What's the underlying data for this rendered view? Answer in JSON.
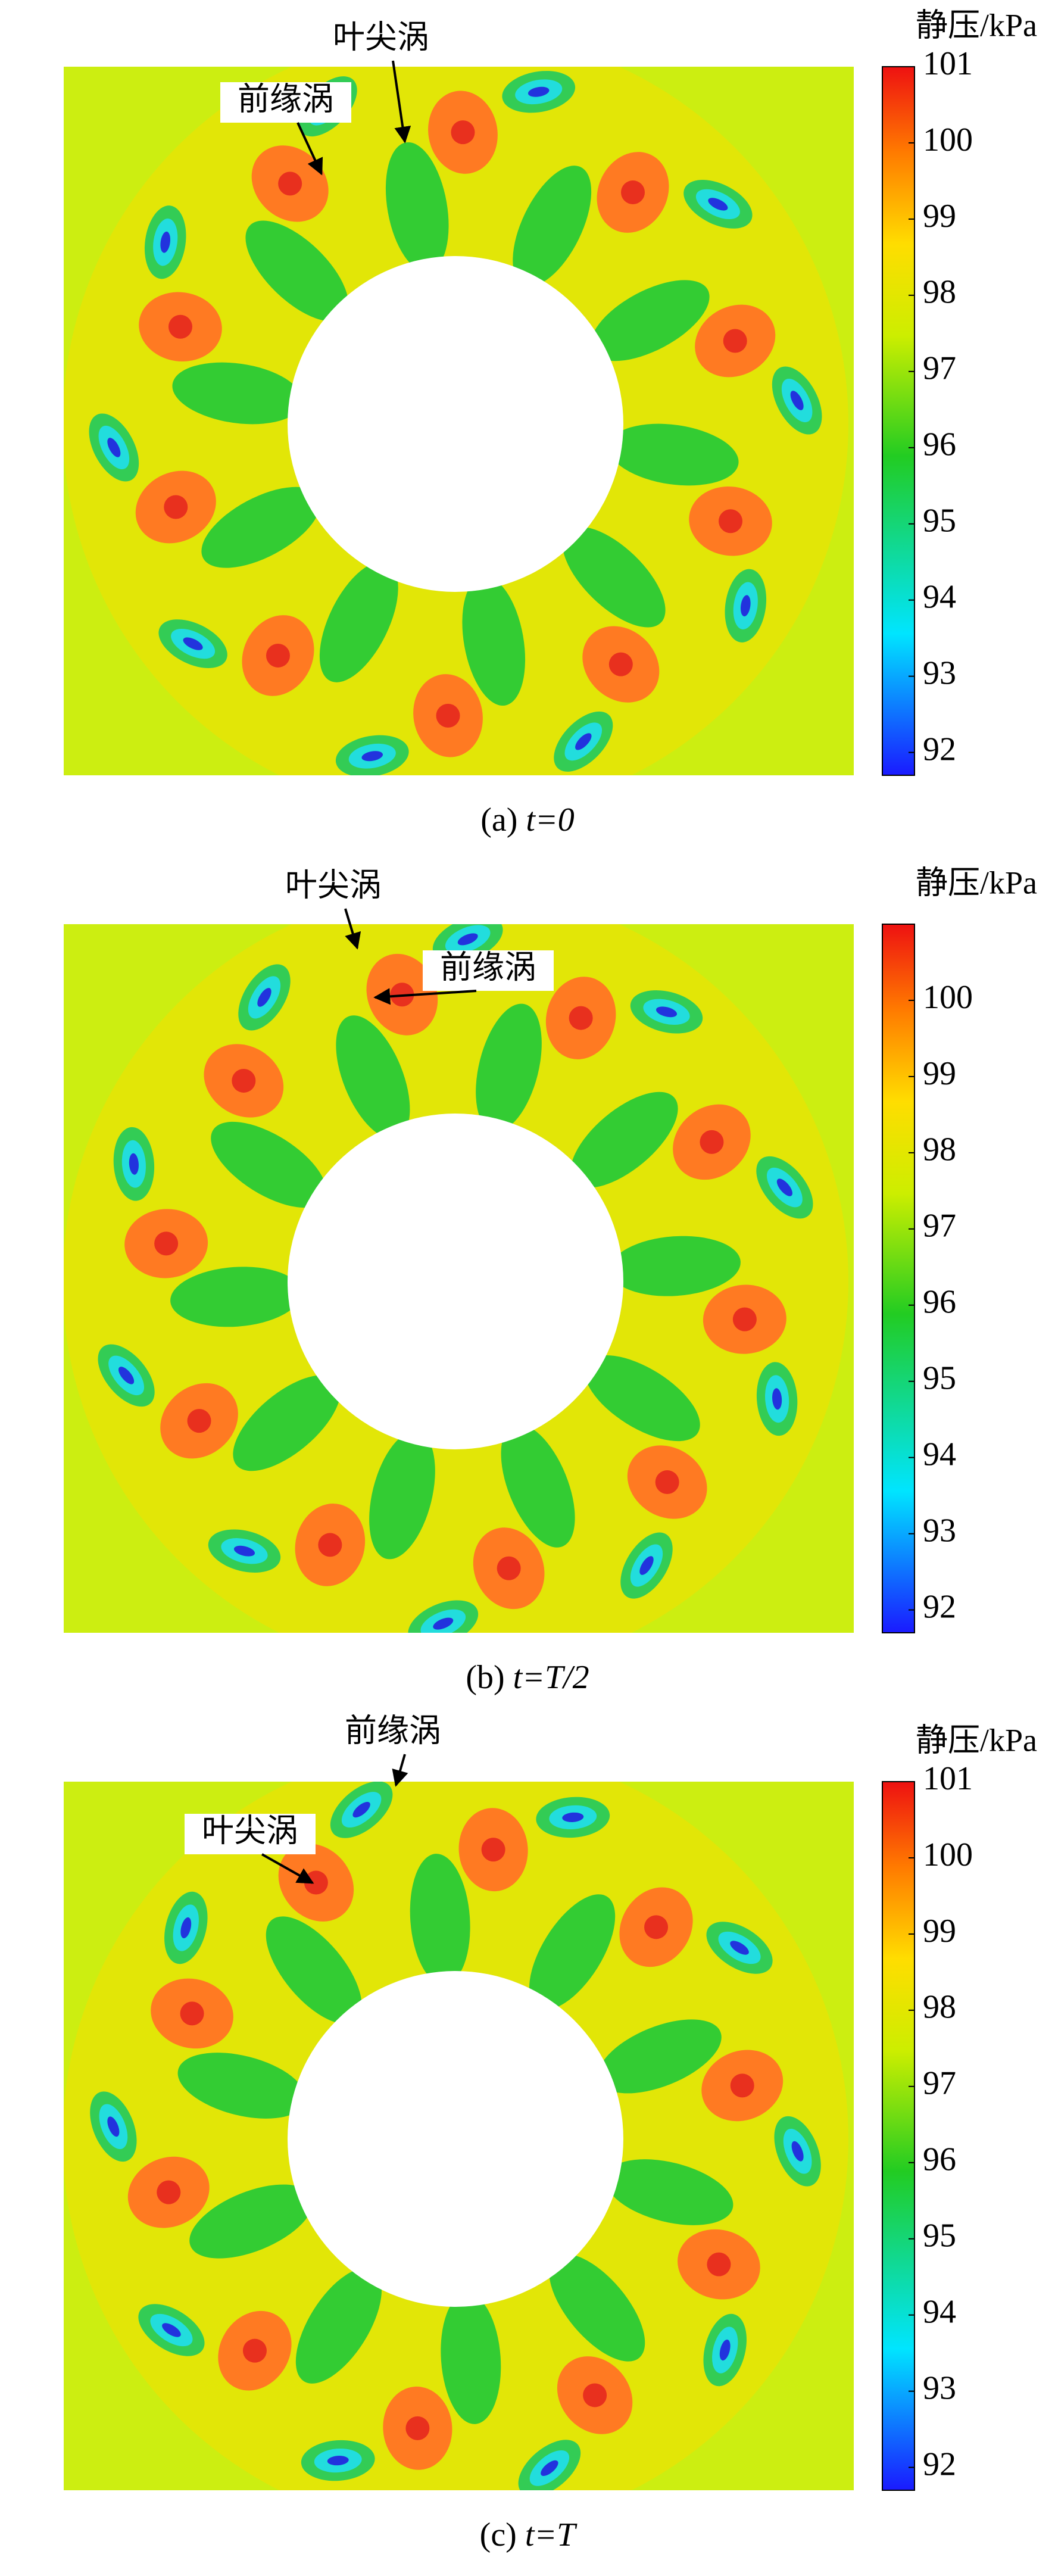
{
  "chart_data": [
    {
      "type": "contour",
      "colorbar_label": "静压/kPa",
      "caption_prefix": "(a)",
      "caption_math": "t=0",
      "annotations": [
        "叶尖涡",
        "前缘涡"
      ],
      "ylim": [
        91.7,
        101
      ],
      "yticks": [
        92,
        93,
        94,
        95,
        96,
        97,
        98,
        99,
        100,
        101
      ]
    },
    {
      "type": "contour",
      "colorbar_label": "静压/kPa",
      "caption_prefix": "(b)",
      "caption_math": "t=T/2",
      "annotations": [
        "叶尖涡",
        "前缘涡"
      ],
      "ylim": [
        91.7,
        101
      ],
      "yticks": [
        92,
        93,
        94,
        95,
        96,
        97,
        98,
        99,
        100
      ]
    },
    {
      "type": "contour",
      "colorbar_label": "静压/kPa",
      "caption_prefix": "(c)",
      "caption_math": "t=T",
      "annotations": [
        "叶尖涡",
        "前缘涡"
      ],
      "ylim": [
        91.7,
        101
      ],
      "yticks": [
        92,
        93,
        94,
        95,
        96,
        97,
        98,
        99,
        100,
        101
      ]
    }
  ]
}
